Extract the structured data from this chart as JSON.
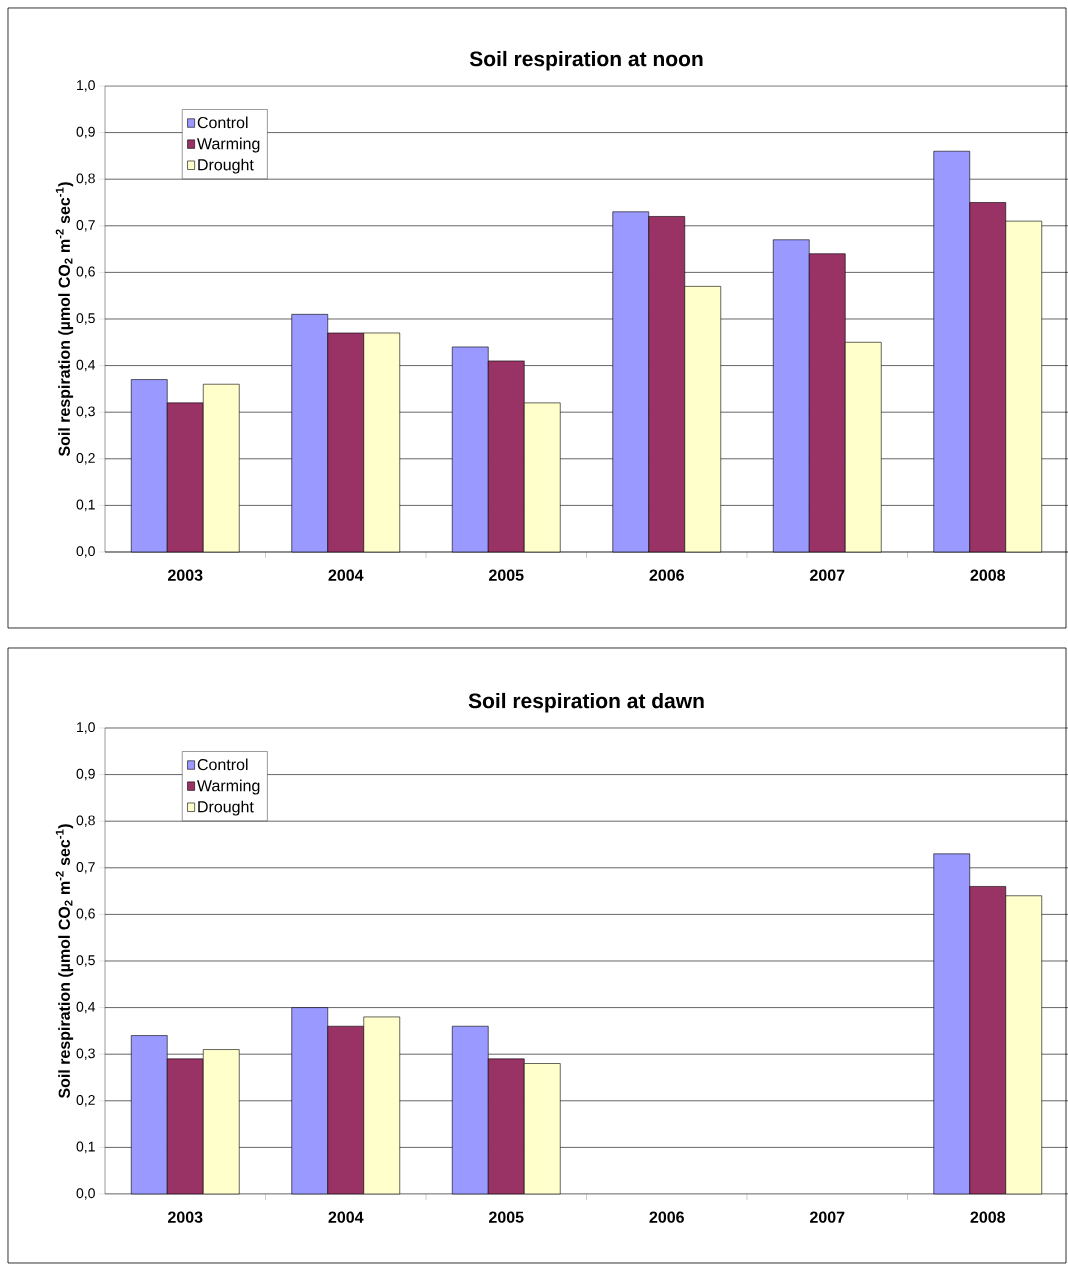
{
  "chart_data": [
    {
      "type": "bar",
      "title": "Soil respiration at noon",
      "ylabel": "Soil respiration (µmol CO$_{2}$ m$^{-2}$ sec$^{-1}$)",
      "categories": [
        "2003",
        "2004",
        "2005",
        "2006",
        "2007",
        "2008"
      ],
      "series": [
        {
          "name": "Control",
          "color": "#9999ff",
          "values": [
            0.37,
            0.51,
            0.44,
            0.73,
            0.67,
            0.86
          ]
        },
        {
          "name": "Warming",
          "color": "#993366",
          "values": [
            0.32,
            0.47,
            0.41,
            0.72,
            0.64,
            0.75
          ]
        },
        {
          "name": "Drought",
          "color": "#ffffcc",
          "values": [
            0.36,
            0.47,
            0.32,
            0.57,
            0.45,
            0.71
          ]
        }
      ],
      "ylim": [
        0,
        1
      ],
      "yticks": [
        {
          "value": 0,
          "label": "0,0"
        },
        {
          "value": 0.1,
          "label": "0,1"
        },
        {
          "value": 0.2,
          "label": "0,2"
        },
        {
          "value": 0.3,
          "label": "0,3"
        },
        {
          "value": 0.4,
          "label": "0,4"
        },
        {
          "value": 0.5,
          "label": "0,5"
        },
        {
          "value": 0.6,
          "label": "0,6"
        },
        {
          "value": 0.7,
          "label": "0,7"
        },
        {
          "value": 0.8,
          "label": "0,8"
        },
        {
          "value": 0.9,
          "label": "0,9"
        },
        {
          "value": 1,
          "label": "1,0"
        }
      ],
      "grid": "y",
      "legend": "top left"
    },
    {
      "type": "bar",
      "title": "Soil respiration at dawn",
      "ylabel": "Soil respiration (µmol CO$_{2}$ m$^{-2}$ sec$^{-1}$)",
      "categories": [
        "2003",
        "2004",
        "2005",
        "2006",
        "2007",
        "2008"
      ],
      "series": [
        {
          "name": "Control",
          "color": "#9999ff",
          "values": [
            0.34,
            0.4,
            0.36,
            null,
            null,
            0.73
          ]
        },
        {
          "name": "Warming",
          "color": "#993366",
          "values": [
            0.29,
            0.36,
            0.29,
            null,
            null,
            0.66
          ]
        },
        {
          "name": "Drought",
          "color": "#ffffcc",
          "values": [
            0.31,
            0.38,
            0.28,
            null,
            null,
            0.64
          ]
        }
      ],
      "ylim": [
        0,
        1
      ],
      "yticks": [
        {
          "value": 0,
          "label": "0,0"
        },
        {
          "value": 0.1,
          "label": "0,1"
        },
        {
          "value": 0.2,
          "label": "0,2"
        },
        {
          "value": 0.3,
          "label": "0,3"
        },
        {
          "value": 0.4,
          "label": "0,4"
        },
        {
          "value": 0.5,
          "label": "0,5"
        },
        {
          "value": 0.6,
          "label": "0,6"
        },
        {
          "value": 0.7,
          "label": "0,7"
        },
        {
          "value": 0.8,
          "label": "0,8"
        },
        {
          "value": 0.9,
          "label": "0,9"
        },
        {
          "value": 1,
          "label": "1,0"
        }
      ],
      "grid": "y",
      "legend": "top left"
    }
  ]
}
